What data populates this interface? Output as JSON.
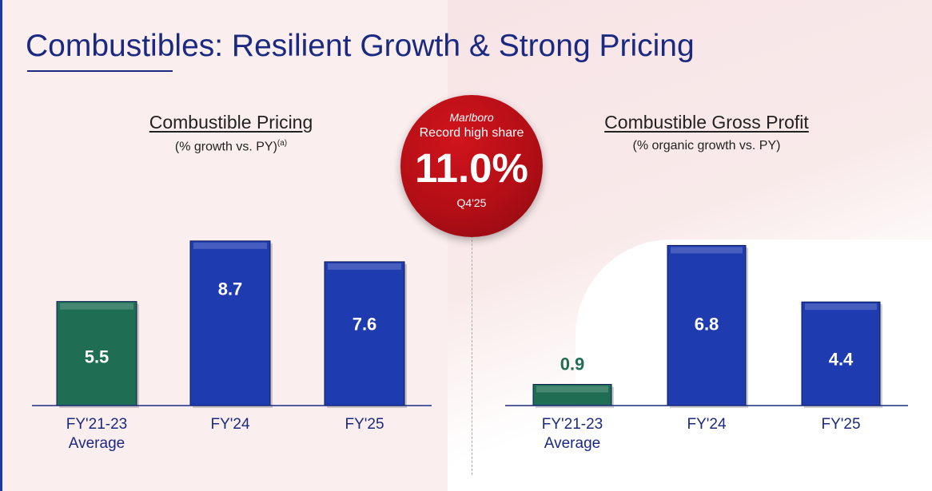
{
  "page": {
    "title": "Combustibles: Resilient Growth & Strong Pricing"
  },
  "badge": {
    "brand": "Marlboro",
    "label": "Record high share",
    "value": "11.0%",
    "period": "Q4'25"
  },
  "colors": {
    "navy": "#1b2a80",
    "green_bar": "#1f6e54",
    "blue_bar": "#1f3bb0",
    "badge_red": "#b40e16"
  },
  "chart_data": [
    {
      "type": "bar",
      "title": "Combustible Pricing",
      "subtitle": "(% growth vs. PY)",
      "subtitle_superscript": "(a)",
      "categories": [
        "FY'21-23\nAverage",
        "FY'24",
        "FY'25"
      ],
      "values": [
        5.5,
        8.7,
        7.6
      ],
      "bar_colors": [
        "#1f6e54",
        "#1f3bb0",
        "#1f3bb0"
      ],
      "ylim": [
        0,
        9
      ],
      "grid": false,
      "legend": "none"
    },
    {
      "type": "bar",
      "title": "Combustible Gross Profit",
      "subtitle": "(% organic growth vs. PY)",
      "categories": [
        "FY'21-23\nAverage",
        "FY'24",
        "FY'25"
      ],
      "values": [
        0.9,
        6.8,
        4.4
      ],
      "bar_colors": [
        "#1f6e54",
        "#1f3bb0",
        "#1f3bb0"
      ],
      "ylim": [
        0,
        7
      ],
      "grid": false,
      "legend": "none"
    }
  ]
}
